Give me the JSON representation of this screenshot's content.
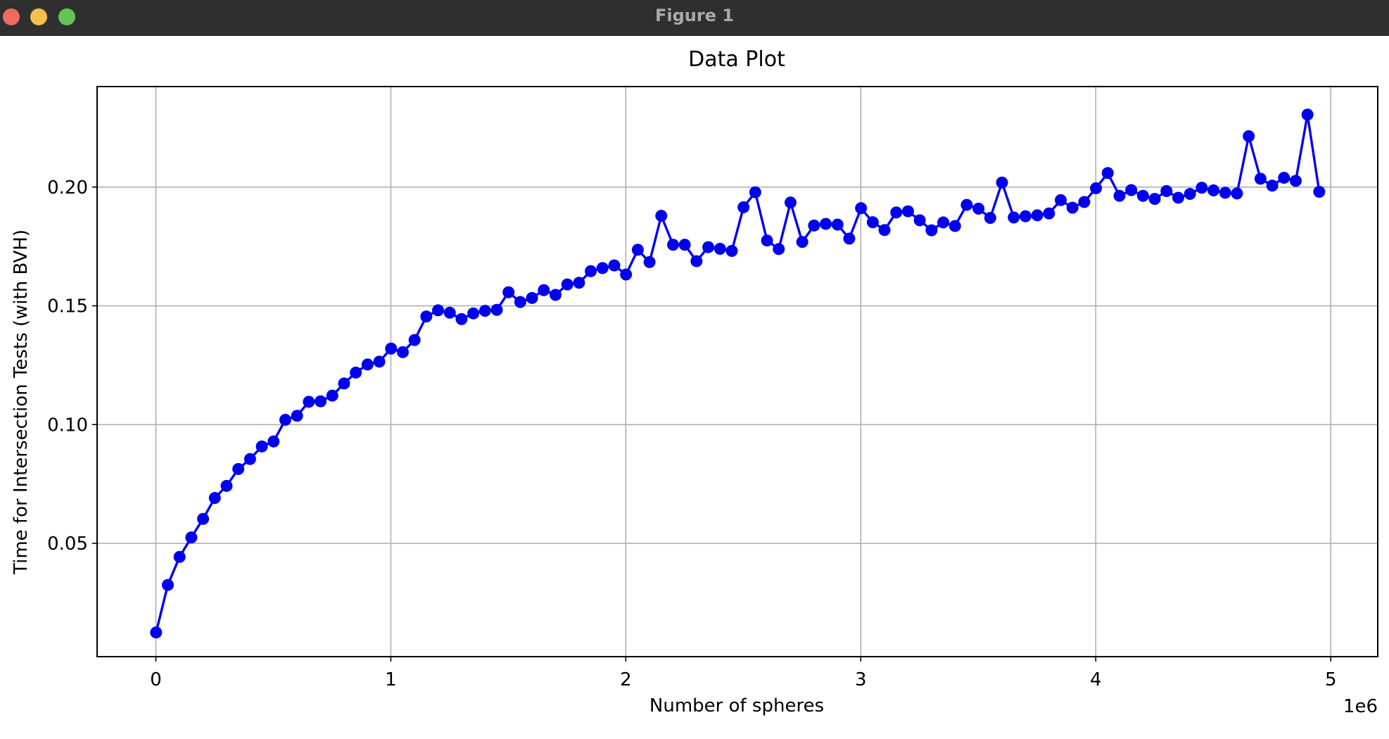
{
  "window": {
    "title": "Figure 1",
    "controls": [
      "close",
      "minimize",
      "maximize"
    ],
    "control_colors": {
      "close": "#ee6a5f",
      "minimize": "#f5be4f",
      "maximize": "#62c554"
    }
  },
  "chart_data": {
    "type": "line",
    "title": "Data Plot",
    "xlabel": "Number of spheres",
    "ylabel": "Time for Intersection Tests (with BVH)",
    "x_offset_label": "1e6",
    "xlim": [
      -250000,
      5200000
    ],
    "ylim": [
      0.0023,
      0.2423
    ],
    "x_ticks": [
      0,
      1000000,
      2000000,
      3000000,
      4000000,
      5000000
    ],
    "x_tick_labels": [
      "0",
      "1",
      "2",
      "3",
      "4",
      "5"
    ],
    "y_ticks": [
      0.05,
      0.1,
      0.15,
      0.2
    ],
    "y_tick_labels": [
      "0.05",
      "0.10",
      "0.15",
      "0.20"
    ],
    "grid": true,
    "marker": "circle",
    "color": "#0000ee",
    "series": [
      {
        "x": [
          1000,
          51000,
          101000,
          151000,
          201000,
          251000,
          301000,
          351000,
          401000,
          451000,
          501000,
          551000,
          601000,
          651000,
          701000,
          751000,
          801000,
          851000,
          901000,
          951000,
          1001000,
          1051000,
          1101000,
          1151000,
          1201000,
          1251000,
          1301000,
          1351000,
          1401000,
          1451000,
          1501000,
          1551000,
          1601000,
          1651000,
          1701000,
          1751000,
          1801000,
          1851000,
          1901000,
          1951000,
          2001000,
          2051000,
          2101000,
          2151000,
          2201000,
          2251000,
          2301000,
          2351000,
          2401000,
          2451000,
          2501000,
          2551000,
          2601000,
          2651000,
          2701000,
          2751000,
          2801000,
          2851000,
          2901000,
          2951000,
          3001000,
          3051000,
          3101000,
          3151000,
          3201000,
          3251000,
          3301000,
          3351000,
          3401000,
          3451000,
          3501000,
          3551000,
          3601000,
          3651000,
          3701000,
          3751000,
          3801000,
          3851000,
          3901000,
          3951000,
          4001000,
          4051000,
          4101000,
          4151000,
          4201000,
          4251000,
          4301000,
          4351000,
          4401000,
          4451000,
          4501000,
          4551000,
          4601000,
          4651000,
          4701000,
          4751000,
          4801000,
          4851000,
          4901000,
          4951000
        ],
        "y": [
          0.0125,
          0.0325,
          0.0443,
          0.0525,
          0.0603,
          0.0691,
          0.0742,
          0.0813,
          0.0855,
          0.0908,
          0.0929,
          0.102,
          0.1037,
          0.1096,
          0.1098,
          0.1122,
          0.1173,
          0.1219,
          0.1253,
          0.1265,
          0.132,
          0.1305,
          0.1356,
          0.1455,
          0.1481,
          0.1471,
          0.1444,
          0.1468,
          0.1479,
          0.1483,
          0.1557,
          0.1516,
          0.1533,
          0.1566,
          0.1546,
          0.159,
          0.1597,
          0.1646,
          0.1659,
          0.167,
          0.1632,
          0.1736,
          0.1684,
          0.1879,
          0.1757,
          0.1757,
          0.1688,
          0.1747,
          0.174,
          0.1731,
          0.1915,
          0.1978,
          0.1775,
          0.1739,
          0.1935,
          0.1769,
          0.1838,
          0.1845,
          0.1842,
          0.1783,
          0.1911,
          0.1852,
          0.1819,
          0.1893,
          0.1898,
          0.186,
          0.1818,
          0.1851,
          0.1836,
          0.1925,
          0.1909,
          0.187,
          0.2019,
          0.1872,
          0.1877,
          0.1881,
          0.1889,
          0.1945,
          0.1913,
          0.1937,
          0.1995,
          0.2059,
          0.1963,
          0.1987,
          0.1963,
          0.195,
          0.1983,
          0.1955,
          0.1971,
          0.1997,
          0.1986,
          0.1976,
          0.1973,
          0.2214,
          0.2035,
          0.2006,
          0.2039,
          0.2026,
          0.2305,
          0.198
        ]
      }
    ]
  }
}
